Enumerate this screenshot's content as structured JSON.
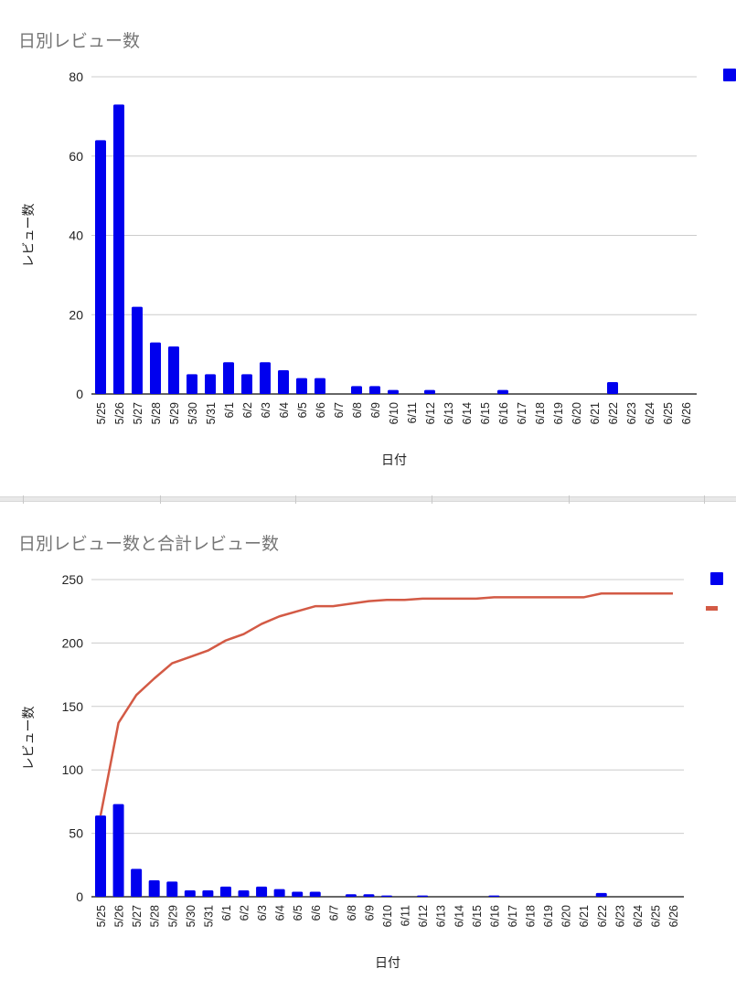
{
  "chart_data": [
    {
      "type": "bar",
      "title": "日別レビュー数",
      "xlabel": "日付",
      "ylabel": "レビュー数",
      "ylim": [
        0,
        80
      ],
      "yticks": [
        0,
        20,
        40,
        60,
        80
      ],
      "grid": true,
      "legend_placement": "top-right",
      "categories": [
        "5/25",
        "5/26",
        "5/27",
        "5/28",
        "5/29",
        "5/30",
        "5/31",
        "6/1",
        "6/2",
        "6/3",
        "6/4",
        "6/5",
        "6/6",
        "6/7",
        "6/8",
        "6/9",
        "6/10",
        "6/11",
        "6/12",
        "6/13",
        "6/14",
        "6/15",
        "6/16",
        "6/17",
        "6/18",
        "6/19",
        "6/20",
        "6/21",
        "6/22",
        "6/23",
        "6/24",
        "6/25",
        "6/26"
      ],
      "series": [
        {
          "name": "",
          "type": "bar",
          "color": "#0000ee",
          "values": [
            64,
            73,
            22,
            13,
            12,
            5,
            5,
            8,
            5,
            8,
            6,
            4,
            4,
            0,
            2,
            2,
            1,
            0,
            1,
            0,
            0,
            0,
            1,
            0,
            0,
            0,
            0,
            0,
            3,
            0,
            0,
            0,
            0
          ]
        }
      ]
    },
    {
      "type": "bar+line",
      "title": "日別レビュー数と合計レビュー数",
      "xlabel": "日付",
      "ylabel": "レビュー数",
      "ylim": [
        0,
        250
      ],
      "yticks": [
        0,
        50,
        100,
        150,
        200,
        250
      ],
      "grid": true,
      "legend_placement": "top-right",
      "categories": [
        "5/25",
        "5/26",
        "5/27",
        "5/28",
        "5/29",
        "5/30",
        "5/31",
        "6/1",
        "6/2",
        "6/3",
        "6/4",
        "6/5",
        "6/6",
        "6/7",
        "6/8",
        "6/9",
        "6/10",
        "6/11",
        "6/12",
        "6/13",
        "6/14",
        "6/15",
        "6/16",
        "6/17",
        "6/18",
        "6/19",
        "6/20",
        "6/21",
        "6/22",
        "6/23",
        "6/24",
        "6/25",
        "6/26"
      ],
      "series": [
        {
          "name": "",
          "type": "bar",
          "color": "#0000ee",
          "values": [
            64,
            73,
            22,
            13,
            12,
            5,
            5,
            8,
            5,
            8,
            6,
            4,
            4,
            0,
            2,
            2,
            1,
            0,
            1,
            0,
            0,
            0,
            1,
            0,
            0,
            0,
            0,
            0,
            3,
            0,
            0,
            0,
            0
          ]
        },
        {
          "name": "",
          "type": "line",
          "color": "#d35a45",
          "values": [
            64,
            137,
            159,
            172,
            184,
            189,
            194,
            202,
            207,
            215,
            221,
            225,
            229,
            229,
            231,
            233,
            234,
            234,
            235,
            235,
            235,
            235,
            236,
            236,
            236,
            236,
            236,
            236,
            239,
            239,
            239,
            239,
            239
          ]
        }
      ]
    }
  ]
}
